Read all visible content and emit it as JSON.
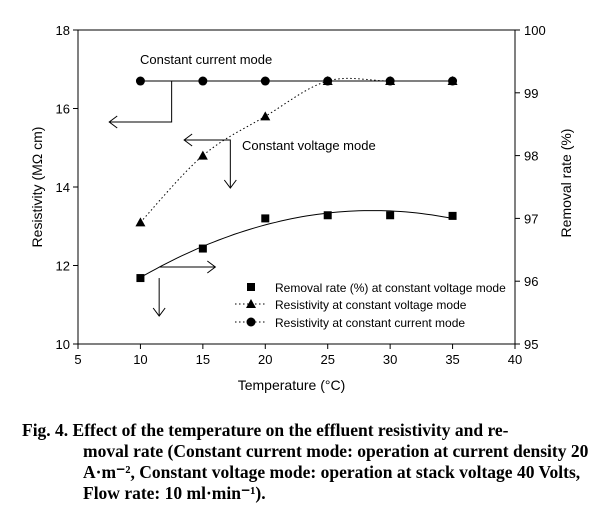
{
  "chart_data": {
    "type": "scatter",
    "xlabel": "Temperature (°C)",
    "ylabel_left": "Resistivity (MΩ cm)",
    "ylabel_right": "Removal rate (%)",
    "xlim": [
      5,
      40
    ],
    "ylim_left": [
      10,
      18
    ],
    "ylim_right": [
      95,
      100
    ],
    "x_ticks": [
      5,
      10,
      15,
      20,
      25,
      30,
      35,
      40
    ],
    "y_left_ticks": [
      10,
      12,
      14,
      16,
      18
    ],
    "y_right_ticks": [
      95,
      96,
      97,
      98,
      99,
      100
    ],
    "grid": false,
    "legend_position": "bottom-right",
    "series": [
      {
        "name": "Removal rate (%) at constant voltage mode",
        "axis": "right",
        "marker": "square",
        "line": "solid fitted curve",
        "x": [
          10,
          15,
          20,
          25,
          30,
          35
        ],
        "values": [
          96.05,
          96.52,
          97.0,
          97.05,
          97.05,
          97.04
        ]
      },
      {
        "name": "Resistivity at constant voltage mode",
        "axis": "left",
        "marker": "triangle",
        "line": "dotted",
        "x": [
          10,
          15,
          20,
          25,
          30,
          35
        ],
        "values": [
          13.1,
          14.8,
          15.8,
          16.7,
          16.7,
          16.7
        ]
      },
      {
        "name": "Resistivity at constant current mode",
        "axis": "left",
        "marker": "circle",
        "line": "dotted",
        "x": [
          10,
          15,
          20,
          25,
          30,
          35
        ],
        "values": [
          16.7,
          16.7,
          16.7,
          16.7,
          16.7,
          16.7
        ]
      }
    ],
    "annotations": [
      {
        "text": "Constant current mode"
      },
      {
        "text": "Constant voltage mode"
      }
    ]
  },
  "caption": {
    "lead": "Fig. 4. Effect of the temperature on the effluent resistivity and re-",
    "rest": "moval rate (Constant current mode: operation at current density 20 A·m⁻², Constant voltage mode: operation at stack voltage 40 Volts, Flow rate: 10 ml·min⁻¹)."
  }
}
